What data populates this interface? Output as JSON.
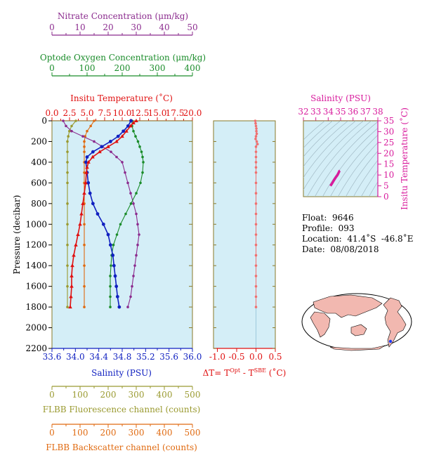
{
  "colors": {
    "background": "#ffffff",
    "panel_fill": "#d4eef7",
    "nitrate": "#8b2b8e",
    "oxygen": "#1a8c2a",
    "temperature": "#e01010",
    "salinity": "#1020c0",
    "fluorescence": "#9a9a30",
    "backscatter": "#e06a10",
    "delta_t": "#f07070",
    "ts_panel": "#d81b9c",
    "frame": "#8a7a2a"
  },
  "axes": {
    "nitrate": {
      "label": "Nitrate Concentration (μm/kg)",
      "ticks": [
        "0",
        "10",
        "20",
        "30",
        "40",
        "50"
      ]
    },
    "oxygen": {
      "label": "Optode Oxygen Concentration (μm/kg)",
      "ticks": [
        "0",
        "100",
        "200",
        "300",
        "400"
      ]
    },
    "temperature": {
      "label": "Insitu Temperature (˚C)",
      "ticks": [
        "0.0",
        "2.5",
        "5.0",
        "7.5",
        "10.0",
        "12.5",
        "15.0",
        "17.5",
        "20.0"
      ]
    },
    "pressure": {
      "label": "Pressure (decibar)",
      "ticks": [
        "0",
        "200",
        "400",
        "600",
        "800",
        "1000",
        "1200",
        "1400",
        "1600",
        "1800",
        "2000",
        "2200"
      ]
    },
    "salinity": {
      "label": "Salinity (PSU)",
      "ticks": [
        "33.6",
        "34.0",
        "34.4",
        "34.8",
        "35.2",
        "35.6",
        "36.0"
      ]
    },
    "delta_t": {
      "ticks": [
        "-1.0",
        "-0.5",
        "0.0",
        "0.5"
      ]
    },
    "fluorescence": {
      "label": "FLBB Fluorescence channel (counts)",
      "ticks": [
        "0",
        "100",
        "200",
        "300",
        "400",
        "500"
      ]
    },
    "backscatter": {
      "label": "FLBB Backscatter channel (counts)",
      "ticks": [
        "0",
        "100",
        "200",
        "300",
        "400",
        "500"
      ]
    },
    "ts_salinity": {
      "label": "Salinity (PSU)",
      "ticks": [
        "32",
        "33",
        "34",
        "35",
        "36",
        "37",
        "38"
      ]
    },
    "ts_temperature": {
      "label": "Insitu Temperature (˚C)",
      "ticks": [
        "0",
        "5",
        "10",
        "15",
        "20",
        "25",
        "30",
        "35"
      ]
    }
  },
  "delta_label": {
    "prefix": "ΔT= T",
    "sup1": "Opt",
    "middle": " - T",
    "sup2": "SBE",
    "suffix": " (˚C)"
  },
  "info": {
    "float": "Float:  9646",
    "profile": "Profile:  093",
    "location": "Location:  41.4˚S  -46.8˚E",
    "date": "Date:  08/08/2018"
  },
  "chart_data": [
    {
      "type": "line",
      "panel": "profiles",
      "y_axis": "pressure",
      "ylim": [
        2200,
        0
      ],
      "series": [
        {
          "axis": "temperature",
          "xlim": [
            0,
            20
          ],
          "points": [
            [
              12.0,
              0
            ],
            [
              11.6,
              20
            ],
            [
              11.2,
              50
            ],
            [
              10.6,
              100
            ],
            [
              10.0,
              150
            ],
            [
              9.2,
              200
            ],
            [
              8.0,
              250
            ],
            [
              6.8,
              300
            ],
            [
              5.8,
              350
            ],
            [
              5.2,
              400
            ],
            [
              5.0,
              450
            ],
            [
              4.9,
              500
            ],
            [
              4.8,
              600
            ],
            [
              4.6,
              700
            ],
            [
              4.4,
              800
            ],
            [
              4.2,
              900
            ],
            [
              4.0,
              1000
            ],
            [
              3.7,
              1100
            ],
            [
              3.4,
              1200
            ],
            [
              3.1,
              1300
            ],
            [
              2.9,
              1400
            ],
            [
              2.8,
              1500
            ],
            [
              2.8,
              1600
            ],
            [
              2.7,
              1700
            ],
            [
              2.6,
              1800
            ]
          ]
        },
        {
          "axis": "salinity",
          "xlim": [
            33.6,
            36.0
          ],
          "points": [
            [
              34.95,
              0
            ],
            [
              34.9,
              50
            ],
            [
              34.82,
              100
            ],
            [
              34.73,
              150
            ],
            [
              34.6,
              200
            ],
            [
              34.45,
              250
            ],
            [
              34.3,
              300
            ],
            [
              34.2,
              350
            ],
            [
              34.18,
              400
            ],
            [
              34.2,
              500
            ],
            [
              34.22,
              600
            ],
            [
              34.25,
              700
            ],
            [
              34.3,
              800
            ],
            [
              34.38,
              900
            ],
            [
              34.48,
              1000
            ],
            [
              34.56,
              1100
            ],
            [
              34.6,
              1200
            ],
            [
              34.64,
              1300
            ],
            [
              34.66,
              1400
            ],
            [
              34.68,
              1500
            ],
            [
              34.7,
              1600
            ],
            [
              34.72,
              1700
            ],
            [
              34.75,
              1800
            ]
          ]
        },
        {
          "axis": "oxygen",
          "xlim": [
            0,
            400
          ],
          "points": [
            [
              228,
              0
            ],
            [
              228,
              50
            ],
            [
              232,
              100
            ],
            [
              238,
              150
            ],
            [
              245,
              200
            ],
            [
              250,
              250
            ],
            [
              255,
              300
            ],
            [
              258,
              350
            ],
            [
              260,
              400
            ],
            [
              258,
              500
            ],
            [
              252,
              600
            ],
            [
              240,
              700
            ],
            [
              225,
              800
            ],
            [
              210,
              900
            ],
            [
              195,
              1000
            ],
            [
              185,
              1100
            ],
            [
              175,
              1200
            ],
            [
              170,
              1300
            ],
            [
              168,
              1400
            ],
            [
              166,
              1500
            ],
            [
              166,
              1600
            ],
            [
              166,
              1700
            ],
            [
              166,
              1800
            ]
          ]
        },
        {
          "axis": "nitrate",
          "xlim": [
            0,
            50
          ],
          "points": [
            [
              4.0,
              0
            ],
            [
              5.0,
              50
            ],
            [
              7.0,
              100
            ],
            [
              11.0,
              150
            ],
            [
              15.0,
              200
            ],
            [
              18.0,
              250
            ],
            [
              21.0,
              300
            ],
            [
              23.0,
              350
            ],
            [
              25.0,
              400
            ],
            [
              26.0,
              500
            ],
            [
              27.0,
              600
            ],
            [
              28.0,
              700
            ],
            [
              29.0,
              800
            ],
            [
              30.0,
              900
            ],
            [
              30.5,
              1000
            ],
            [
              31.0,
              1100
            ],
            [
              30.5,
              1200
            ],
            [
              30.0,
              1300
            ],
            [
              29.5,
              1400
            ],
            [
              29.0,
              1500
            ],
            [
              28.5,
              1600
            ],
            [
              28.0,
              1700
            ],
            [
              27.0,
              1800
            ]
          ]
        },
        {
          "axis": "fluorescence",
          "xlim": [
            0,
            500
          ],
          "points": [
            [
              85,
              0
            ],
            [
              70,
              50
            ],
            [
              62,
              100
            ],
            [
              58,
              150
            ],
            [
              55,
              200
            ],
            [
              55,
              300
            ],
            [
              55,
              400
            ],
            [
              55,
              500
            ],
            [
              55,
              600
            ],
            [
              55,
              800
            ],
            [
              55,
              1000
            ],
            [
              55,
              1200
            ],
            [
              55,
              1400
            ],
            [
              55,
              1600
            ],
            [
              55,
              1800
            ]
          ]
        },
        {
          "axis": "backscatter",
          "xlim": [
            0,
            500
          ],
          "points": [
            [
              150,
              0
            ],
            [
              138,
              50
            ],
            [
              125,
              100
            ],
            [
              118,
              150
            ],
            [
              115,
              200
            ],
            [
              115,
              250
            ],
            [
              115,
              300
            ],
            [
              115,
              400
            ],
            [
              115,
              500
            ],
            [
              115,
              600
            ],
            [
              115,
              800
            ],
            [
              115,
              1000
            ],
            [
              115,
              1200
            ],
            [
              115,
              1400
            ],
            [
              115,
              1600
            ],
            [
              115,
              1800
            ]
          ]
        }
      ]
    },
    {
      "type": "scatter",
      "panel": "delta_t",
      "x_axis": "delta_t",
      "xlim": [
        -1.1,
        0.5
      ],
      "ylim": [
        2200,
        0
      ],
      "points": [
        [
          -0.02,
          0
        ],
        [
          -0.01,
          25
        ],
        [
          0.0,
          50
        ],
        [
          0.01,
          75
        ],
        [
          0.01,
          100
        ],
        [
          0.02,
          125
        ],
        [
          0.0,
          150
        ],
        [
          -0.01,
          175
        ],
        [
          0.02,
          200
        ],
        [
          0.04,
          225
        ],
        [
          0.0,
          250
        ],
        [
          0.0,
          300
        ],
        [
          0.0,
          350
        ],
        [
          0.0,
          400
        ],
        [
          0.0,
          450
        ],
        [
          0.0,
          500
        ],
        [
          0.0,
          600
        ],
        [
          0.0,
          700
        ],
        [
          0.0,
          800
        ],
        [
          0.0,
          900
        ],
        [
          0.0,
          1000
        ],
        [
          0.0,
          1100
        ],
        [
          0.0,
          1200
        ],
        [
          0.0,
          1300
        ],
        [
          0.0,
          1400
        ],
        [
          0.0,
          1500
        ],
        [
          0.0,
          1600
        ],
        [
          0.0,
          1700
        ],
        [
          0.0,
          1800
        ]
      ]
    },
    {
      "type": "line",
      "panel": "ts_diagram",
      "xlim": [
        32,
        38
      ],
      "ylim": [
        0,
        35
      ],
      "points": [
        [
          34.18,
          5.0
        ],
        [
          34.2,
          5.2
        ],
        [
          34.3,
          6.0
        ],
        [
          34.45,
          7.5
        ],
        [
          34.6,
          8.8
        ],
        [
          34.75,
          10.0
        ],
        [
          34.85,
          11.2
        ],
        [
          34.9,
          11.8
        ],
        [
          34.95,
          12.0
        ]
      ]
    }
  ]
}
